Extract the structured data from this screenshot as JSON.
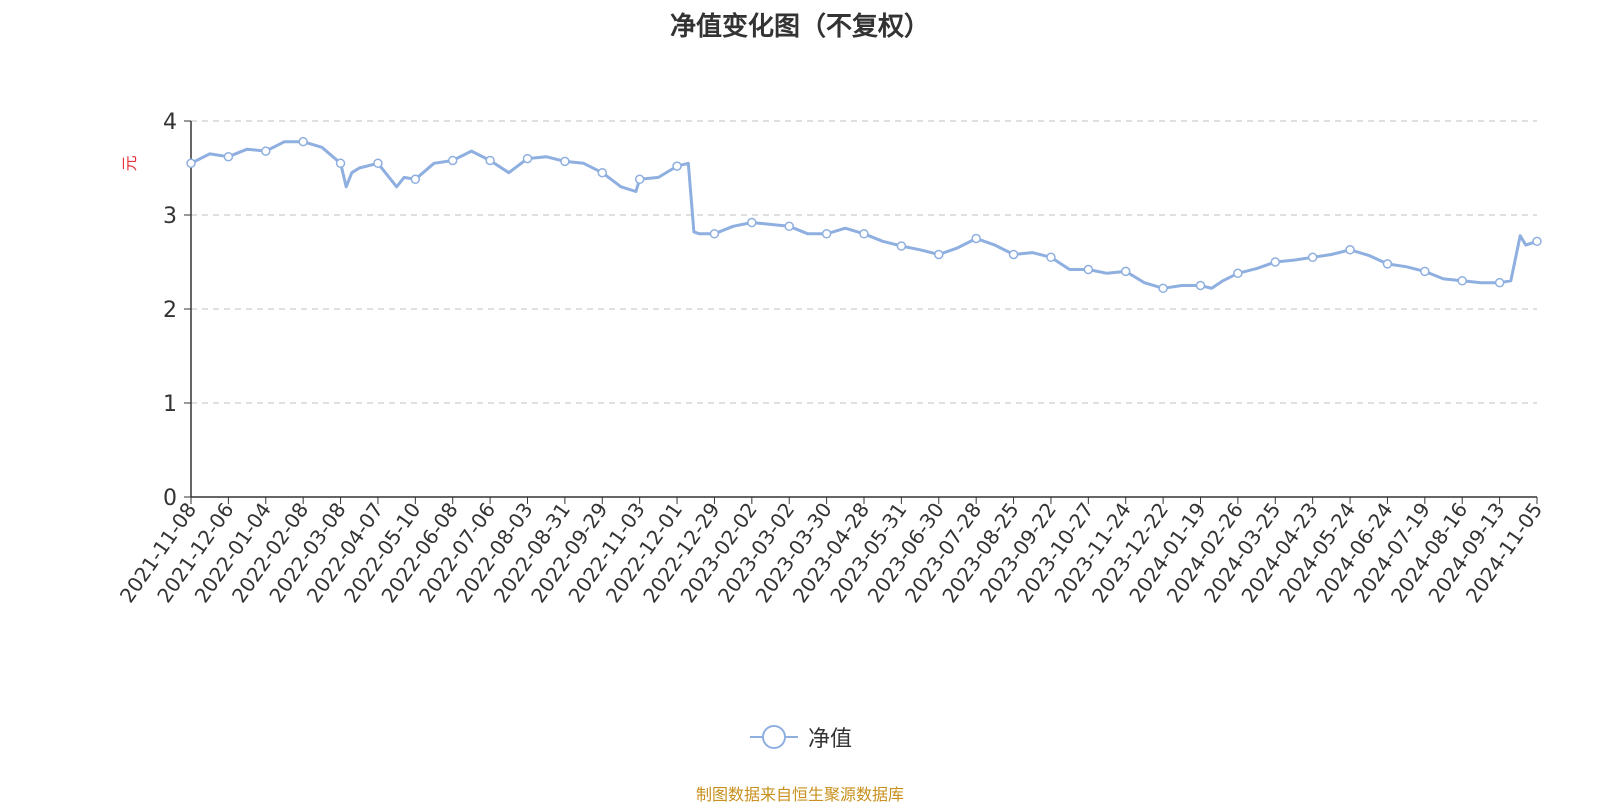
{
  "chart_data": {
    "type": "line",
    "title": "净值变化图（不复权）",
    "ylabel": "元",
    "ylim": [
      0,
      4
    ],
    "yticks": [
      0,
      1,
      2,
      3,
      4
    ],
    "grid": true,
    "legend_position": "bottom",
    "x_tick_labels": [
      "2021-11-08",
      "2021-12-06",
      "2022-01-04",
      "2022-02-08",
      "2022-03-08",
      "2022-04-07",
      "2022-05-10",
      "2022-06-08",
      "2022-07-06",
      "2022-08-03",
      "2022-08-31",
      "2022-09-29",
      "2022-11-03",
      "2022-12-01",
      "2022-12-29",
      "2023-02-02",
      "2023-03-02",
      "2023-03-30",
      "2023-04-28",
      "2023-05-31",
      "2023-06-30",
      "2023-07-28",
      "2023-08-25",
      "2023-09-22",
      "2023-10-27",
      "2023-11-24",
      "2023-12-22",
      "2024-01-19",
      "2024-02-26",
      "2024-03-25",
      "2024-04-23",
      "2024-05-24",
      "2024-06-24",
      "2024-07-19",
      "2024-08-16",
      "2024-09-13",
      "2024-11-05"
    ],
    "series": [
      {
        "name": "净值",
        "color": "#8eafe0",
        "marker_indices": [
          0,
          1,
          2,
          3,
          4,
          5,
          6,
          7,
          8,
          9,
          10,
          11,
          12,
          13,
          14,
          15,
          16,
          17,
          18,
          19,
          20,
          21,
          22,
          23,
          24,
          25,
          26,
          27,
          28,
          29,
          30,
          31,
          32,
          33,
          34,
          35,
          36
        ],
        "x_index": [
          0,
          0.5,
          1,
          1.5,
          2,
          2.5,
          3,
          3.5,
          4,
          4.15,
          4.3,
          4.5,
          5,
          5.5,
          5.7,
          6,
          6.5,
          7,
          7.5,
          8,
          8.5,
          9,
          9.5,
          10,
          10.5,
          11,
          11.5,
          11.9,
          12,
          12.5,
          13,
          13.3,
          13.45,
          13.6,
          14,
          14.5,
          15,
          15.5,
          16,
          16.5,
          17,
          17.5,
          18,
          18.5,
          19,
          19.5,
          20,
          20.5,
          21,
          21.5,
          22,
          22.5,
          23,
          23.5,
          24,
          24.5,
          25,
          25.5,
          26,
          26.5,
          27,
          27.3,
          27.6,
          28,
          28.5,
          29,
          29.5,
          30,
          30.5,
          31,
          31.5,
          32,
          32.5,
          33,
          33.5,
          34,
          34.5,
          35,
          35.3,
          35.55,
          35.7,
          36
        ],
        "values": [
          3.55,
          3.65,
          3.62,
          3.7,
          3.68,
          3.78,
          3.78,
          3.72,
          3.55,
          3.3,
          3.45,
          3.5,
          3.55,
          3.3,
          3.4,
          3.38,
          3.55,
          3.58,
          3.68,
          3.58,
          3.45,
          3.6,
          3.62,
          3.57,
          3.55,
          3.45,
          3.3,
          3.25,
          3.38,
          3.4,
          3.52,
          3.55,
          2.82,
          2.8,
          2.8,
          2.88,
          2.92,
          2.9,
          2.88,
          2.8,
          2.8,
          2.86,
          2.8,
          2.72,
          2.67,
          2.63,
          2.58,
          2.65,
          2.75,
          2.68,
          2.58,
          2.6,
          2.55,
          2.42,
          2.42,
          2.38,
          2.4,
          2.28,
          2.22,
          2.25,
          2.25,
          2.22,
          2.3,
          2.38,
          2.43,
          2.5,
          2.52,
          2.55,
          2.58,
          2.63,
          2.57,
          2.48,
          2.45,
          2.4,
          2.32,
          2.3,
          2.28,
          2.28,
          2.3,
          2.78,
          2.68,
          2.72
        ]
      }
    ]
  },
  "legend": {
    "label": "净值"
  },
  "source_note": "制图数据来自恒生聚源数据库"
}
